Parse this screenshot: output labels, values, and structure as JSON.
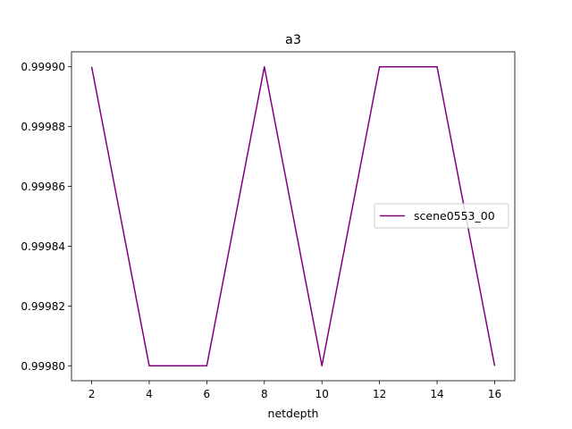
{
  "chart_data": {
    "type": "line",
    "title": "a3",
    "xlabel": "netdepth",
    "ylabel": "",
    "x": [
      2,
      4,
      6,
      8,
      10,
      12,
      14,
      16
    ],
    "x_ticks": [
      2,
      4,
      6,
      8,
      10,
      12,
      14,
      16
    ],
    "y_ticks": [
      0.9998,
      0.99982,
      0.99984,
      0.99986,
      0.99988,
      0.9999
    ],
    "y_tick_labels": [
      "0.99980",
      "0.99982",
      "0.99984",
      "0.99986",
      "0.99988",
      "0.99990"
    ],
    "xlim": [
      1.3,
      16.7
    ],
    "ylim": [
      0.999795,
      0.999905
    ],
    "grid": false,
    "legend_position": "center-right",
    "series": [
      {
        "name": "scene0553_00",
        "color": "#800080",
        "values": [
          0.9999,
          0.9998,
          0.9998,
          0.9999,
          0.9998,
          0.9999,
          0.9999,
          0.9998
        ]
      }
    ]
  }
}
